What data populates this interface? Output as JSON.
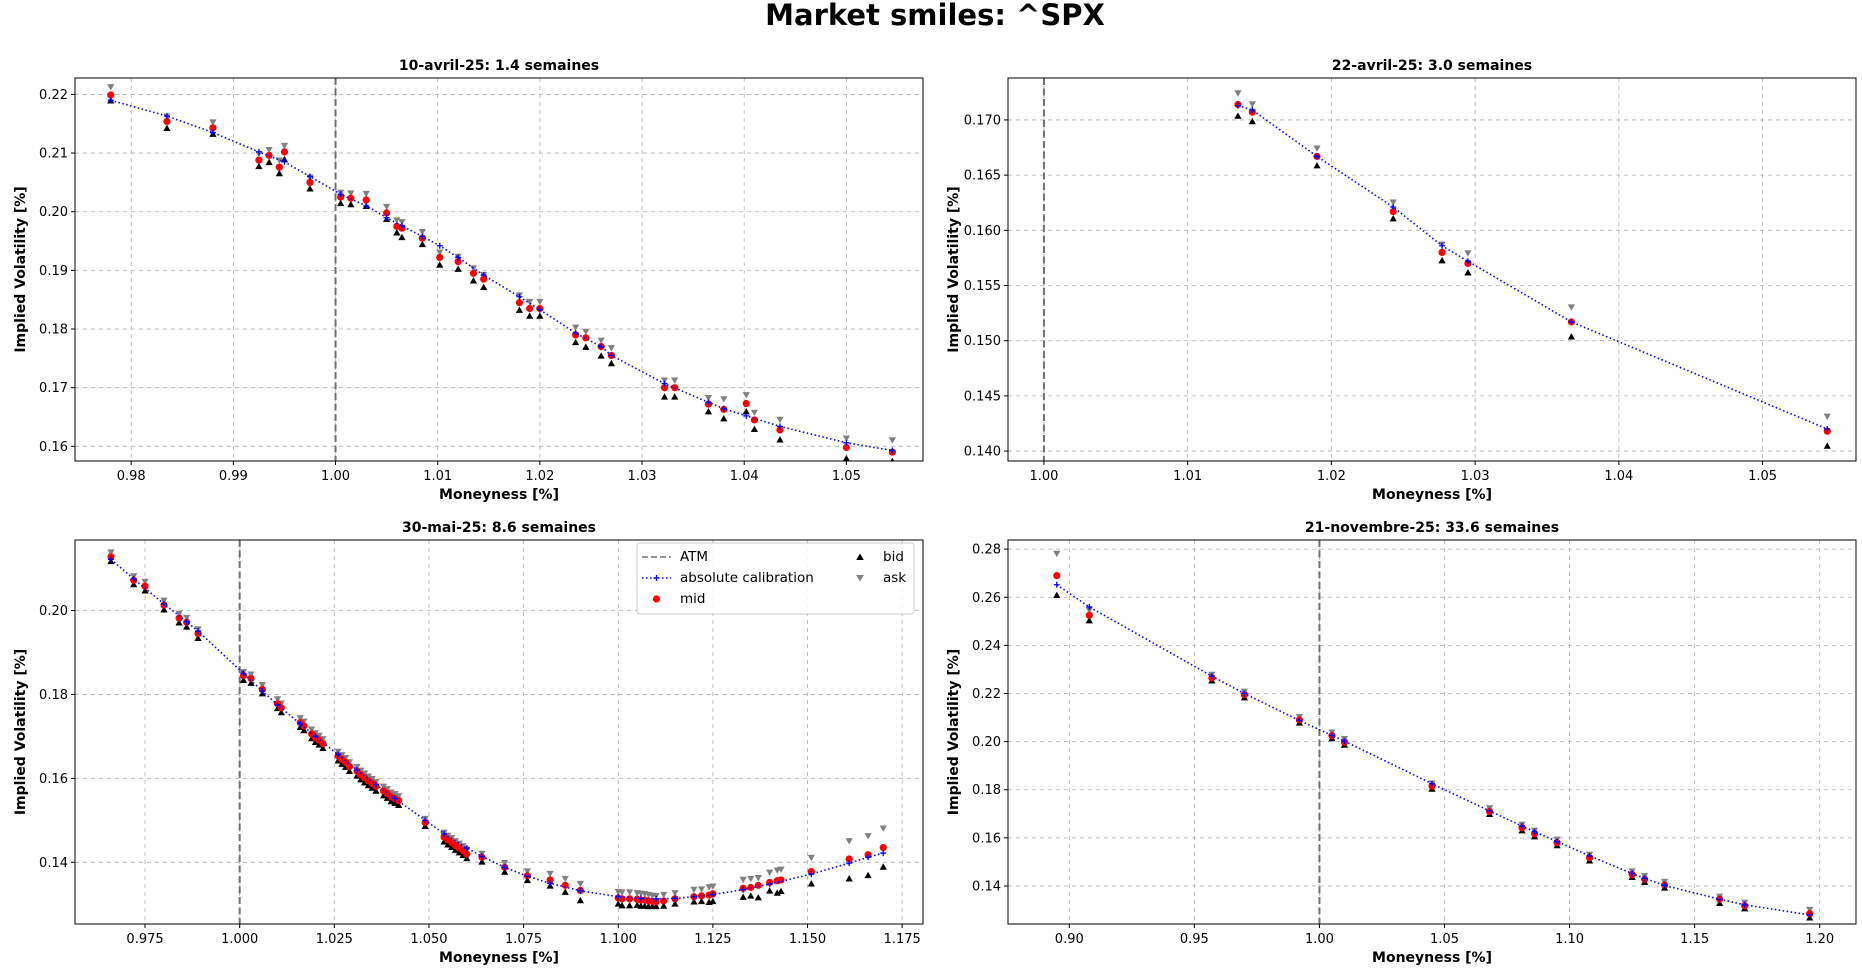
{
  "suptitle": "Market smiles: ^SPX",
  "legend": {
    "position": "upper-right (panel 3)",
    "atm": "ATM",
    "calib": "absolute calibration",
    "mid": "mid",
    "bid": "bid",
    "ask": "ask"
  },
  "colors": {
    "atm": "#707070",
    "calib": "#0000ff",
    "mid": "#ff0000",
    "bid": "#000000",
    "ask": "#808080",
    "grid": "#b0b0b0"
  },
  "chart_data": [
    {
      "type": "scatter",
      "title": "10-avril-25: 1.4 semaines",
      "xlabel": "Moneyness [%]",
      "ylabel": "Implied Volatility [%]",
      "xlim": [
        0.9745,
        1.0575
      ],
      "ylim": [
        0.1575,
        0.2228
      ],
      "xticks": [
        0.98,
        0.99,
        1.0,
        1.01,
        1.02,
        1.03,
        1.04,
        1.05
      ],
      "xtick_labels": [
        "0.98",
        "0.99",
        "1.00",
        "1.01",
        "1.02",
        "1.03",
        "1.04",
        "1.05"
      ],
      "yticks": [
        0.16,
        0.17,
        0.18,
        0.19,
        0.2,
        0.21,
        0.22
      ],
      "ytick_labels": [
        "0.16",
        "0.17",
        "0.18",
        "0.19",
        "0.20",
        "0.21",
        "0.22"
      ],
      "grid": true,
      "atm": 1.0,
      "x": [
        0.978,
        0.9835,
        0.988,
        0.9925,
        0.9935,
        0.9945,
        0.995,
        0.9975,
        1.0005,
        1.0015,
        1.003,
        1.005,
        1.006,
        1.0065,
        1.0085,
        1.0102,
        1.012,
        1.0135,
        1.0145,
        1.018,
        1.019,
        1.02,
        1.0235,
        1.0245,
        1.026,
        1.027,
        1.0322,
        1.0332,
        1.0365,
        1.038,
        1.0402,
        1.041,
        1.0435,
        1.05,
        1.0545
      ],
      "mid": [
        0.2199,
        0.2154,
        0.2143,
        0.2088,
        0.2096,
        0.2076,
        0.2102,
        0.205,
        0.2025,
        0.2023,
        0.202,
        0.1998,
        0.1975,
        0.1972,
        0.1955,
        0.1922,
        0.1915,
        0.1895,
        0.1885,
        0.1845,
        0.1835,
        0.1835,
        0.179,
        0.1785,
        0.177,
        0.1755,
        0.17,
        0.17,
        0.1672,
        0.1663,
        0.1673,
        0.1645,
        0.1628,
        0.1598,
        0.159
      ],
      "bid": [
        0.219,
        0.2143,
        0.2133,
        0.2078,
        0.2085,
        0.2066,
        0.209,
        0.204,
        0.2015,
        0.2013,
        0.201,
        0.1988,
        0.1965,
        0.1957,
        0.1945,
        0.191,
        0.1903,
        0.1883,
        0.1872,
        0.1833,
        0.1823,
        0.1823,
        0.1778,
        0.177,
        0.1755,
        0.1742,
        0.1685,
        0.1685,
        0.166,
        0.1648,
        0.166,
        0.163,
        0.1612,
        0.158,
        0.1575
      ],
      "ask": [
        0.2212,
        0.2162,
        0.2152,
        0.2098,
        0.2105,
        0.2087,
        0.2112,
        0.2058,
        0.2032,
        0.2031,
        0.203,
        0.2008,
        0.1985,
        0.1982,
        0.1965,
        0.193,
        0.1923,
        0.1903,
        0.1892,
        0.1857,
        0.1846,
        0.1846,
        0.1802,
        0.1795,
        0.178,
        0.1767,
        0.1712,
        0.1712,
        0.1682,
        0.168,
        0.1687,
        0.1657,
        0.1645,
        0.1613,
        0.161
      ],
      "calib_x": [
        0.978,
        0.9835,
        0.988,
        0.9925,
        0.995,
        0.9975,
        1.0005,
        1.003,
        1.005,
        1.0065,
        1.0085,
        1.0102,
        1.012,
        1.0145,
        1.018,
        1.02,
        1.0235,
        1.026,
        1.027,
        1.0322,
        1.0365,
        1.038,
        1.0402,
        1.0435,
        1.05,
        1.0545
      ],
      "calib_y": [
        0.219,
        0.2163,
        0.2135,
        0.2102,
        0.2085,
        0.206,
        0.203,
        0.201,
        0.199,
        0.1976,
        0.1958,
        0.1942,
        0.1922,
        0.1892,
        0.1855,
        0.1833,
        0.1793,
        0.177,
        0.1755,
        0.1707,
        0.1675,
        0.1664,
        0.1652,
        0.1634,
        0.1606,
        0.1593
      ]
    },
    {
      "type": "scatter",
      "title": "22-avril-25: 3.0 semaines",
      "xlabel": "Moneyness [%]",
      "ylabel": "Implied Volatility [%]",
      "xlim": [
        0.9975,
        1.0565
      ],
      "ylim": [
        0.1391,
        0.1738
      ],
      "xticks": [
        1.0,
        1.01,
        1.02,
        1.03,
        1.04,
        1.05
      ],
      "xtick_labels": [
        "1.00",
        "1.01",
        "1.02",
        "1.03",
        "1.04",
        "1.05"
      ],
      "yticks": [
        0.14,
        0.145,
        0.15,
        0.155,
        0.16,
        0.165,
        0.17
      ],
      "ytick_labels": [
        "0.140",
        "0.145",
        "0.150",
        "0.155",
        "0.160",
        "0.165",
        "0.170"
      ],
      "grid": true,
      "atm": 1.0,
      "x": [
        1.0135,
        1.0145,
        1.019,
        1.0243,
        1.0277,
        1.0295,
        1.0367,
        1.0545
      ],
      "mid": [
        0.1714,
        0.1707,
        0.1667,
        0.1617,
        0.158,
        0.157,
        0.1517,
        0.1418
      ],
      "bid": [
        0.1704,
        0.1699,
        0.1659,
        0.1611,
        0.1573,
        0.1562,
        0.1504,
        0.1405
      ],
      "ask": [
        0.1724,
        0.1714,
        0.1674,
        0.1625,
        0.1587,
        0.1579,
        0.153,
        0.1431
      ],
      "calib_x": [
        1.0135,
        1.0145,
        1.019,
        1.0243,
        1.0277,
        1.0295,
        1.0367,
        1.0545
      ],
      "calib_y": [
        0.1713,
        0.1709,
        0.1667,
        0.1621,
        0.1586,
        0.1572,
        0.1517,
        0.142
      ]
    },
    {
      "type": "scatter",
      "title": "30-mai-25: 8.6 semaines",
      "xlabel": "Moneyness [%]",
      "ylabel": "Implied Volatility [%]",
      "xlim": [
        0.9565,
        1.1805
      ],
      "ylim": [
        0.1253,
        0.2168
      ],
      "xticks": [
        0.975,
        1.0,
        1.025,
        1.05,
        1.075,
        1.1,
        1.125,
        1.15,
        1.175
      ],
      "xtick_labels": [
        "0.975",
        "1.000",
        "1.025",
        "1.050",
        "1.075",
        "1.100",
        "1.125",
        "1.150",
        "1.175"
      ],
      "yticks": [
        0.14,
        0.16,
        0.18,
        0.2
      ],
      "ytick_labels": [
        "0.14",
        "0.16",
        "0.18",
        "0.20"
      ],
      "grid": true,
      "atm": 1.0,
      "x": [
        0.966,
        0.972,
        0.975,
        0.98,
        0.984,
        0.986,
        0.989,
        1.001,
        1.003,
        1.006,
        1.01,
        1.011,
        1.016,
        1.017,
        1.019,
        1.02,
        1.021,
        1.022,
        1.026,
        1.027,
        1.028,
        1.029,
        1.031,
        1.032,
        1.033,
        1.034,
        1.035,
        1.036,
        1.038,
        1.039,
        1.04,
        1.041,
        1.042,
        1.049,
        1.054,
        1.055,
        1.056,
        1.057,
        1.058,
        1.059,
        1.06,
        1.064,
        1.07,
        1.076,
        1.082,
        1.086,
        1.09,
        1.1,
        1.101,
        1.103,
        1.105,
        1.106,
        1.107,
        1.108,
        1.109,
        1.11,
        1.112,
        1.115,
        1.12,
        1.122,
        1.124,
        1.125,
        1.133,
        1.135,
        1.137,
        1.14,
        1.142,
        1.143,
        1.151,
        1.161,
        1.166,
        1.17
      ],
      "mid": [
        0.2128,
        0.2072,
        0.2058,
        0.2013,
        0.1982,
        0.1972,
        0.1945,
        0.1845,
        0.1838,
        0.1812,
        0.1778,
        0.1768,
        0.1733,
        0.1725,
        0.1706,
        0.1697,
        0.1691,
        0.1683,
        0.1653,
        0.1645,
        0.1638,
        0.1628,
        0.1617,
        0.1608,
        0.1601,
        0.1594,
        0.1588,
        0.1581,
        0.157,
        0.1564,
        0.1556,
        0.1552,
        0.1547,
        0.1495,
        0.146,
        0.1453,
        0.1447,
        0.144,
        0.1434,
        0.1428,
        0.142,
        0.1412,
        0.1388,
        0.1368,
        0.1358,
        0.1345,
        0.1333,
        0.1315,
        0.1313,
        0.1313,
        0.1312,
        0.131,
        0.131,
        0.1308,
        0.1307,
        0.1306,
        0.1308,
        0.1313,
        0.1318,
        0.132,
        0.1322,
        0.1325,
        0.1338,
        0.134,
        0.1345,
        0.1352,
        0.1356,
        0.1358,
        0.1378,
        0.1408,
        0.1418,
        0.1435
      ],
      "bid": [
        0.2118,
        0.2063,
        0.2048,
        0.2003,
        0.1972,
        0.1962,
        0.1935,
        0.1835,
        0.1828,
        0.1803,
        0.1768,
        0.1758,
        0.1723,
        0.1715,
        0.1696,
        0.1687,
        0.1681,
        0.1673,
        0.1643,
        0.1635,
        0.1628,
        0.1618,
        0.1607,
        0.1598,
        0.1591,
        0.1584,
        0.1578,
        0.1571,
        0.156,
        0.1554,
        0.1546,
        0.1542,
        0.1537,
        0.1487,
        0.145,
        0.1443,
        0.1437,
        0.143,
        0.1424,
        0.1418,
        0.141,
        0.1402,
        0.1378,
        0.1358,
        0.1345,
        0.133,
        0.131,
        0.1302,
        0.1298,
        0.1298,
        0.1299,
        0.1297,
        0.1297,
        0.1296,
        0.1296,
        0.1296,
        0.1297,
        0.1302,
        0.1307,
        0.1308,
        0.1306,
        0.1308,
        0.1318,
        0.1321,
        0.1317,
        0.1333,
        0.1328,
        0.1332,
        0.135,
        0.1362,
        0.137,
        0.139
      ],
      "ask": [
        0.2138,
        0.2081,
        0.2068,
        0.2023,
        0.1992,
        0.1982,
        0.1955,
        0.1853,
        0.1847,
        0.1822,
        0.1788,
        0.1778,
        0.1743,
        0.1735,
        0.1716,
        0.1707,
        0.1701,
        0.1693,
        0.1663,
        0.1655,
        0.1648,
        0.1638,
        0.1627,
        0.1618,
        0.1611,
        0.1604,
        0.1598,
        0.1591,
        0.158,
        0.1574,
        0.1566,
        0.1562,
        0.1557,
        0.1503,
        0.147,
        0.1463,
        0.1457,
        0.145,
        0.1444,
        0.1438,
        0.143,
        0.142,
        0.1398,
        0.1378,
        0.1372,
        0.136,
        0.1348,
        0.1329,
        0.1328,
        0.1328,
        0.1326,
        0.1325,
        0.1324,
        0.1322,
        0.132,
        0.1319,
        0.1322,
        0.1326,
        0.1334,
        0.1335,
        0.134,
        0.1342,
        0.1358,
        0.136,
        0.1362,
        0.1375,
        0.138,
        0.1382,
        0.141,
        0.145,
        0.1462,
        0.148
      ],
      "calib_x": [
        0.966,
        0.972,
        0.98,
        0.986,
        0.989,
        1.001,
        1.006,
        1.01,
        1.016,
        1.02,
        1.026,
        1.031,
        1.036,
        1.041,
        1.049,
        1.054,
        1.06,
        1.064,
        1.07,
        1.076,
        1.082,
        1.09,
        1.1,
        1.106,
        1.11,
        1.115,
        1.12,
        1.125,
        1.133,
        1.14,
        1.151,
        1.161,
        1.166,
        1.17
      ],
      "calib_y": [
        0.2122,
        0.2075,
        0.2016,
        0.1973,
        0.1951,
        0.185,
        0.1808,
        0.1775,
        0.173,
        0.17,
        0.1657,
        0.162,
        0.1585,
        0.1552,
        0.15,
        0.1468,
        0.1434,
        0.1414,
        0.1388,
        0.1367,
        0.135,
        0.1332,
        0.1318,
        0.1314,
        0.1313,
        0.1314,
        0.1318,
        0.1323,
        0.1335,
        0.1348,
        0.1372,
        0.1398,
        0.1412,
        0.1422
      ]
    },
    {
      "type": "scatter",
      "title": "21-novembre-25: 33.6 semaines",
      "xlabel": "Moneyness [%]",
      "ylabel": "Implied Volatility [%]",
      "xlim": [
        0.8755,
        1.2145
      ],
      "ylim": [
        0.1242,
        0.2838
      ],
      "xticks": [
        0.9,
        0.95,
        1.0,
        1.05,
        1.1,
        1.15,
        1.2
      ],
      "xtick_labels": [
        "0.90",
        "0.95",
        "1.00",
        "1.05",
        "1.10",
        "1.15",
        "1.20"
      ],
      "yticks": [
        0.14,
        0.16,
        0.18,
        0.2,
        0.22,
        0.24,
        0.26,
        0.28
      ],
      "ytick_labels": [
        "0.14",
        "0.16",
        "0.18",
        "0.20",
        "0.22",
        "0.24",
        "0.26",
        "0.28"
      ],
      "grid": true,
      "atm": 1.0,
      "x": [
        0.895,
        0.908,
        0.957,
        0.97,
        0.992,
        1.005,
        1.01,
        1.045,
        1.068,
        1.081,
        1.086,
        1.095,
        1.108,
        1.125,
        1.13,
        1.138,
        1.16,
        1.17,
        1.196
      ],
      "mid": [
        0.269,
        0.2525,
        0.2265,
        0.2195,
        0.209,
        0.2025,
        0.1998,
        0.1815,
        0.171,
        0.1642,
        0.1617,
        0.158,
        0.1517,
        0.1448,
        0.1428,
        0.1404,
        0.1345,
        0.1318,
        0.1285
      ],
      "bid": [
        0.261,
        0.2505,
        0.2255,
        0.2185,
        0.208,
        0.2015,
        0.1988,
        0.1805,
        0.17,
        0.1632,
        0.1607,
        0.157,
        0.1507,
        0.1438,
        0.1418,
        0.1394,
        0.133,
        0.1308,
        0.127
      ],
      "ask": [
        0.278,
        0.2545,
        0.2277,
        0.2207,
        0.2102,
        0.2037,
        0.201,
        0.1825,
        0.1722,
        0.1654,
        0.1629,
        0.1592,
        0.1529,
        0.146,
        0.144,
        0.1416,
        0.1355,
        0.133,
        0.13
      ],
      "calib_x": [
        0.895,
        0.908,
        0.957,
        0.97,
        0.992,
        1.005,
        1.01,
        1.045,
        1.068,
        1.081,
        1.086,
        1.095,
        1.108,
        1.125,
        1.13,
        1.138,
        1.16,
        1.17,
        1.196
      ],
      "calib_y": [
        0.2652,
        0.256,
        0.2272,
        0.22,
        0.2088,
        0.2026,
        0.2002,
        0.1825,
        0.1712,
        0.1649,
        0.1625,
        0.1585,
        0.1525,
        0.1452,
        0.1432,
        0.1402,
        0.1345,
        0.1322,
        0.128
      ]
    }
  ]
}
